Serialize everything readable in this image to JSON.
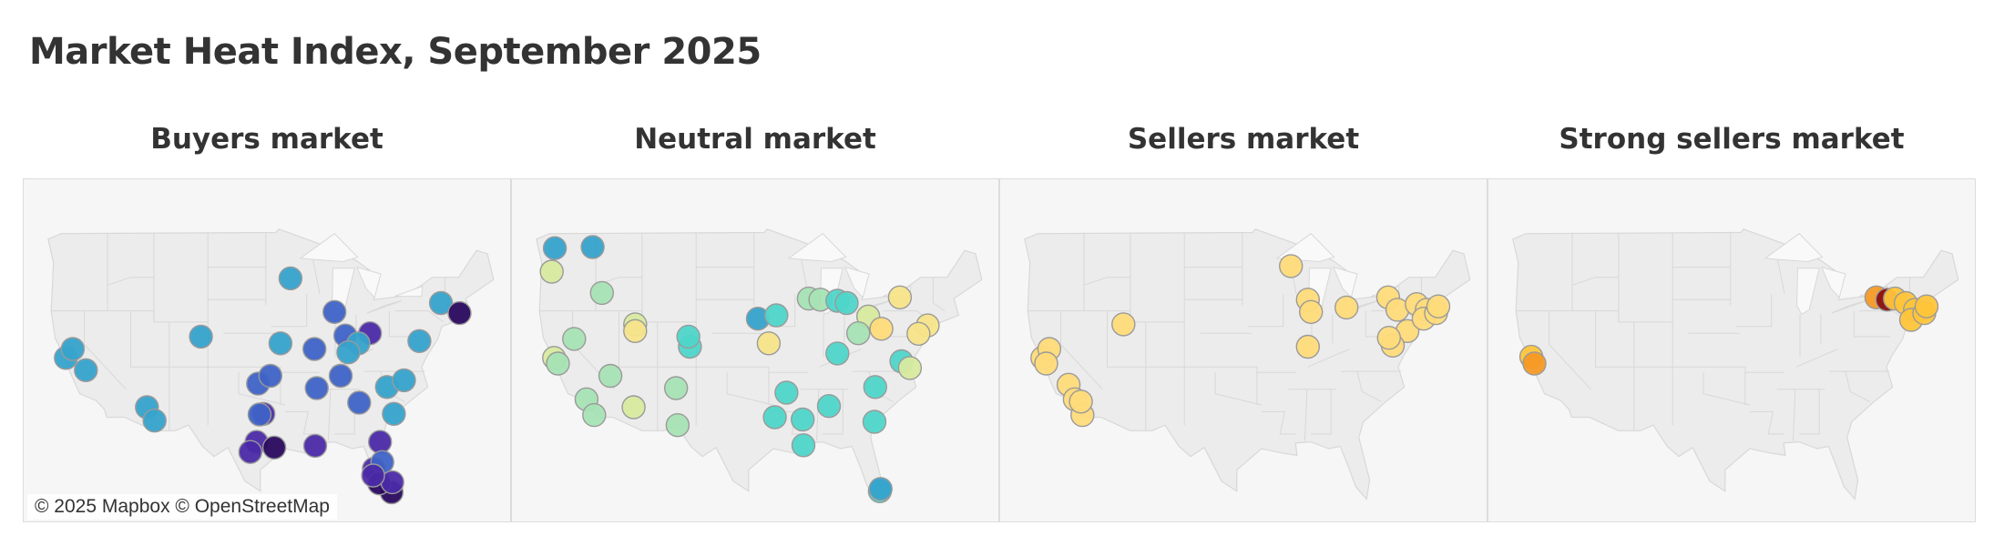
{
  "title": "Market Heat Index, September 2025",
  "attribution": "© 2025 Mapbox © OpenStreetMap",
  "colors": {
    "land": "#f4f4f4",
    "border": "#d8d8d8",
    "marker_stroke": "#9a9a9a"
  },
  "color_scale": [
    "#2a0a5e",
    "#4b2aa8",
    "#3f63c6",
    "#36a3cc",
    "#4fd6c9",
    "#a6e3b4",
    "#d8ea9f",
    "#f7e48a",
    "#ffdb7a",
    "#ffc53a",
    "#f59a25",
    "#8a1010"
  ],
  "panels": [
    {
      "label": "Buyers market",
      "markers": [
        {
          "lon": -122.4,
          "lat": 37.8,
          "c": 3
        },
        {
          "lon": -121.5,
          "lat": 38.6,
          "c": 3
        },
        {
          "lon": -119.8,
          "lat": 36.7,
          "c": 3
        },
        {
          "lon": -111.9,
          "lat": 33.4,
          "c": 3
        },
        {
          "lon": -110.9,
          "lat": 32.2,
          "c": 3
        },
        {
          "lon": -104.9,
          "lat": 39.7,
          "c": 3
        },
        {
          "lon": -97.5,
          "lat": 35.5,
          "c": 2
        },
        {
          "lon": -95.9,
          "lat": 36.2,
          "c": 2
        },
        {
          "lon": -97.7,
          "lat": 30.3,
          "c": 1
        },
        {
          "lon": -98.5,
          "lat": 29.4,
          "c": 1
        },
        {
          "lon": -95.4,
          "lat": 29.8,
          "c": 0
        },
        {
          "lon": -96.8,
          "lat": 32.8,
          "c": 1
        },
        {
          "lon": -90.1,
          "lat": 29.95,
          "c": 1
        },
        {
          "lon": -93.3,
          "lat": 44.9,
          "c": 3
        },
        {
          "lon": -87.6,
          "lat": 41.9,
          "c": 2
        },
        {
          "lon": -86.2,
          "lat": 39.8,
          "c": 2
        },
        {
          "lon": -83.0,
          "lat": 40.0,
          "c": 1
        },
        {
          "lon": -84.5,
          "lat": 39.1,
          "c": 3
        },
        {
          "lon": -85.8,
          "lat": 38.3,
          "c": 3
        },
        {
          "lon": -86.8,
          "lat": 36.2,
          "c": 2
        },
        {
          "lon": -84.4,
          "lat": 33.8,
          "c": 2
        },
        {
          "lon": -80.8,
          "lat": 35.2,
          "c": 3
        },
        {
          "lon": -78.6,
          "lat": 35.8,
          "c": 3
        },
        {
          "lon": -79.9,
          "lat": 32.8,
          "c": 3
        },
        {
          "lon": -81.7,
          "lat": 30.3,
          "c": 1
        },
        {
          "lon": -82.5,
          "lat": 27.9,
          "c": 1
        },
        {
          "lon": -81.4,
          "lat": 28.5,
          "c": 2
        },
        {
          "lon": -80.2,
          "lat": 25.8,
          "c": 0
        },
        {
          "lon": -81.8,
          "lat": 26.6,
          "c": 0
        },
        {
          "lon": -80.1,
          "lat": 26.7,
          "c": 1
        },
        {
          "lon": -76.6,
          "lat": 39.3,
          "c": 3
        },
        {
          "lon": -73.8,
          "lat": 42.7,
          "c": 3
        },
        {
          "lon": -71.4,
          "lat": 41.8,
          "c": 0
        },
        {
          "lon": -90.2,
          "lat": 38.6,
          "c": 2
        },
        {
          "lon": -94.6,
          "lat": 39.1,
          "c": 3
        },
        {
          "lon": -89.9,
          "lat": 35.1,
          "c": 2
        },
        {
          "lon": -82.6,
          "lat": 27.3,
          "c": 1
        },
        {
          "lon": -97.3,
          "lat": 32.75,
          "c": 2
        }
      ]
    },
    {
      "label": "Neutral market",
      "markers": [
        {
          "lon": -122.3,
          "lat": 47.6,
          "c": 3
        },
        {
          "lon": -117.4,
          "lat": 47.7,
          "c": 3
        },
        {
          "lon": -122.7,
          "lat": 45.5,
          "c": 6
        },
        {
          "lon": -116.2,
          "lat": 43.6,
          "c": 5
        },
        {
          "lon": -122.4,
          "lat": 37.8,
          "c": 6
        },
        {
          "lon": -121.9,
          "lat": 37.3,
          "c": 5
        },
        {
          "lon": -119.8,
          "lat": 39.5,
          "c": 5
        },
        {
          "lon": -115.1,
          "lat": 36.2,
          "c": 5
        },
        {
          "lon": -118.2,
          "lat": 34.1,
          "c": 5
        },
        {
          "lon": -117.2,
          "lat": 32.7,
          "c": 5
        },
        {
          "lon": -111.9,
          "lat": 40.8,
          "c": 6
        },
        {
          "lon": -111.9,
          "lat": 40.2,
          "c": 7
        },
        {
          "lon": -112.1,
          "lat": 33.4,
          "c": 6
        },
        {
          "lon": -106.6,
          "lat": 35.1,
          "c": 5
        },
        {
          "lon": -106.4,
          "lat": 31.8,
          "c": 5
        },
        {
          "lon": -104.8,
          "lat": 38.8,
          "c": 4
        },
        {
          "lon": -105.0,
          "lat": 39.7,
          "c": 4
        },
        {
          "lon": -96.0,
          "lat": 41.3,
          "c": 3
        },
        {
          "lon": -94.6,
          "lat": 39.1,
          "c": 7
        },
        {
          "lon": -93.6,
          "lat": 41.6,
          "c": 4
        },
        {
          "lon": -89.4,
          "lat": 43.1,
          "c": 5
        },
        {
          "lon": -87.9,
          "lat": 43.0,
          "c": 5
        },
        {
          "lon": -92.3,
          "lat": 34.7,
          "c": 4
        },
        {
          "lon": -90.2,
          "lat": 32.3,
          "c": 4
        },
        {
          "lon": -86.8,
          "lat": 33.5,
          "c": 4
        },
        {
          "lon": -85.7,
          "lat": 38.2,
          "c": 4
        },
        {
          "lon": -93.8,
          "lat": 32.5,
          "c": 4
        },
        {
          "lon": -90.1,
          "lat": 30.0,
          "c": 4
        },
        {
          "lon": -85.7,
          "lat": 42.9,
          "c": 4
        },
        {
          "lon": -84.5,
          "lat": 42.7,
          "c": 4
        },
        {
          "lon": -81.7,
          "lat": 41.5,
          "c": 6
        },
        {
          "lon": -80.0,
          "lat": 40.4,
          "c": 8
        },
        {
          "lon": -83.0,
          "lat": 40.0,
          "c": 5
        },
        {
          "lon": -77.4,
          "lat": 37.5,
          "c": 4
        },
        {
          "lon": -76.3,
          "lat": 36.9,
          "c": 6
        },
        {
          "lon": -80.8,
          "lat": 35.2,
          "c": 4
        },
        {
          "lon": -77.6,
          "lat": 43.2,
          "c": 7
        },
        {
          "lon": -80.2,
          "lat": 25.9,
          "c": 4
        },
        {
          "lon": -80.1,
          "lat": 26.1,
          "c": 3
        },
        {
          "lon": -80.9,
          "lat": 32.1,
          "c": 4
        },
        {
          "lon": -74.0,
          "lat": 40.7,
          "c": 7
        },
        {
          "lon": -75.2,
          "lat": 39.95,
          "c": 7
        }
      ]
    },
    {
      "label": "Sellers market",
      "markers": [
        {
          "lon": -122.4,
          "lat": 37.8,
          "c": 8
        },
        {
          "lon": -121.5,
          "lat": 38.6,
          "c": 8
        },
        {
          "lon": -121.9,
          "lat": 37.3,
          "c": 8
        },
        {
          "lon": -119.0,
          "lat": 35.4,
          "c": 8
        },
        {
          "lon": -118.2,
          "lat": 34.1,
          "c": 8
        },
        {
          "lon": -117.2,
          "lat": 32.7,
          "c": 8
        },
        {
          "lon": -117.4,
          "lat": 33.9,
          "c": 8
        },
        {
          "lon": -111.9,
          "lat": 40.8,
          "c": 8
        },
        {
          "lon": -90.2,
          "lat": 46.0,
          "c": 8
        },
        {
          "lon": -88.0,
          "lat": 43.0,
          "c": 8
        },
        {
          "lon": -87.6,
          "lat": 41.9,
          "c": 8
        },
        {
          "lon": -83.0,
          "lat": 42.3,
          "c": 8
        },
        {
          "lon": -88.0,
          "lat": 38.8,
          "c": 8
        },
        {
          "lon": -77.6,
          "lat": 43.2,
          "c": 8
        },
        {
          "lon": -76.4,
          "lat": 42.1,
          "c": 8
        },
        {
          "lon": -75.1,
          "lat": 40.2,
          "c": 8
        },
        {
          "lon": -77.0,
          "lat": 38.9,
          "c": 8
        },
        {
          "lon": -77.5,
          "lat": 39.6,
          "c": 8
        },
        {
          "lon": -73.9,
          "lat": 42.6,
          "c": 8
        },
        {
          "lon": -72.6,
          "lat": 42.1,
          "c": 8
        },
        {
          "lon": -73.0,
          "lat": 41.3,
          "c": 8
        },
        {
          "lon": -71.4,
          "lat": 41.8,
          "c": 8
        },
        {
          "lon": -71.1,
          "lat": 42.4,
          "c": 8
        }
      ]
    },
    {
      "label": "Strong sellers market",
      "markers": [
        {
          "lon": -122.3,
          "lat": 37.9,
          "c": 9
        },
        {
          "lon": -121.9,
          "lat": 37.3,
          "c": 10
        },
        {
          "lon": -77.6,
          "lat": 43.2,
          "c": 10
        },
        {
          "lon": -76.2,
          "lat": 43.0,
          "c": 11
        },
        {
          "lon": -75.2,
          "lat": 43.1,
          "c": 9
        },
        {
          "lon": -73.8,
          "lat": 42.7,
          "c": 9
        },
        {
          "lon": -72.6,
          "lat": 42.1,
          "c": 9
        },
        {
          "lon": -73.1,
          "lat": 41.2,
          "c": 9
        },
        {
          "lon": -71.4,
          "lat": 41.8,
          "c": 9
        },
        {
          "lon": -71.1,
          "lat": 42.4,
          "c": 9
        }
      ]
    }
  ]
}
